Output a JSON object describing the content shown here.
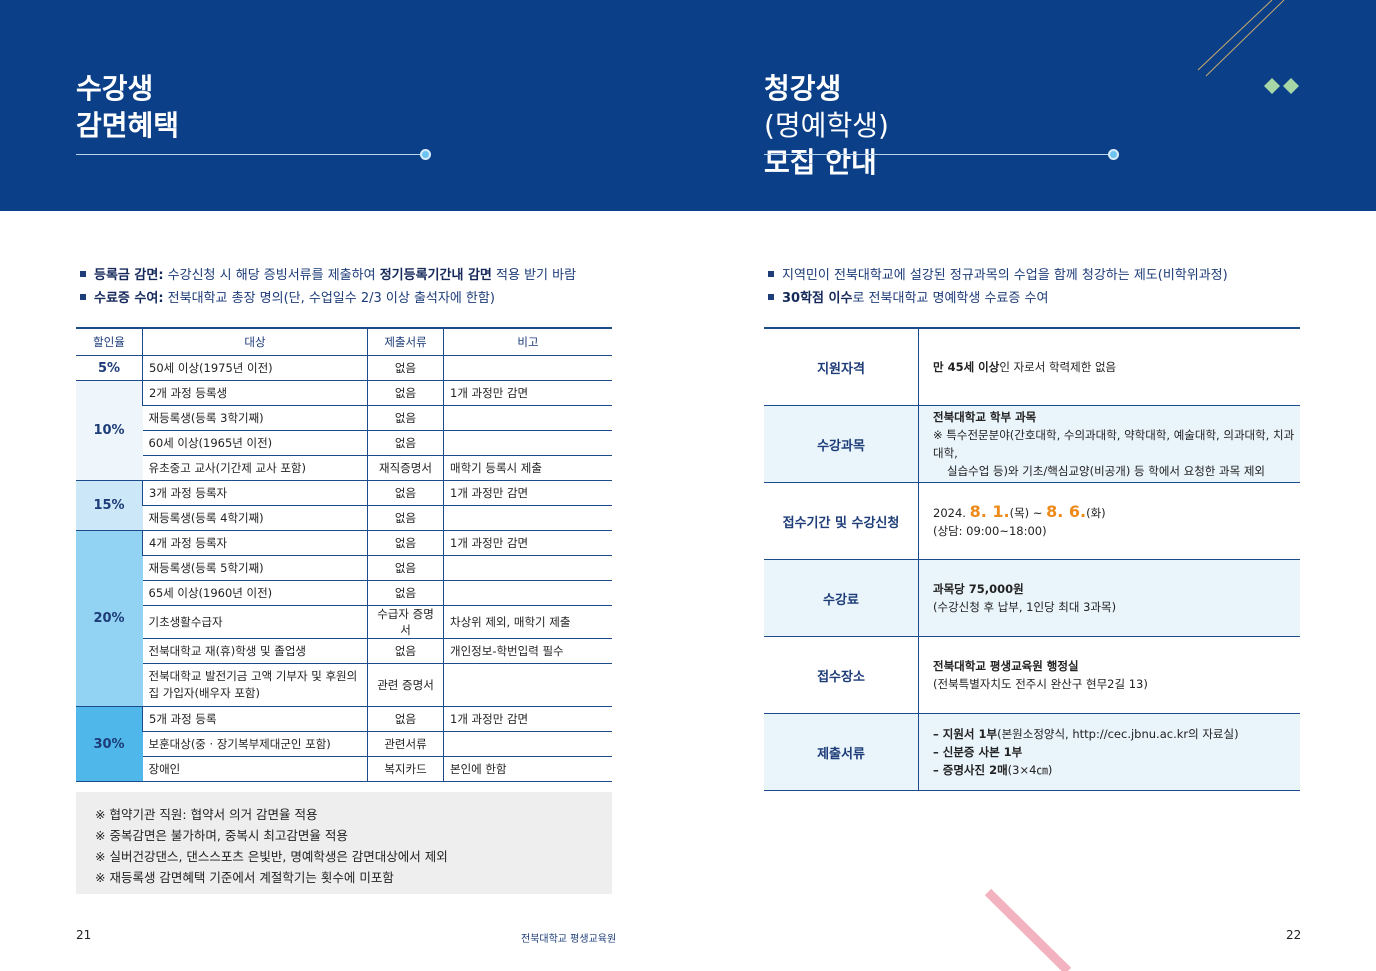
{
  "left": {
    "title": [
      "수강생",
      "감면혜택"
    ],
    "bullets": [
      [
        "등록금 감면:",
        "수강신청 시 해당 증빙서류를 제출하여",
        "정기등록기간내 감면",
        "적용 받기 바람"
      ],
      [
        "수료증 수여:",
        "전북대학교 총장 명의(단, 수업일수 2/3 이상 출석자에 한함)"
      ]
    ],
    "table": {
      "headers": [
        "할인율",
        "대상",
        "제출서류",
        "비고"
      ],
      "groups": [
        {
          "rate": "5%",
          "rows": [
            {
              "target": "50세 이상(1975년 이전)",
              "documents": "없음"
            }
          ]
        },
        {
          "rate": "10%",
          "rows": [
            {
              "target": "2개 과정 등록생",
              "documents": "없음",
              "note": "1개 과정만 감면"
            },
            {
              "target": "재등록생(등록 3학기째)",
              "documents": "없음"
            },
            {
              "target": "60세 이상(1965년 이전)",
              "documents": "없음"
            },
            {
              "target": "유초중고 교사(기간제 교사 포함)",
              "documents": "재직증명서",
              "note": "매학기 등록시 제출"
            }
          ]
        },
        {
          "rate": "15%",
          "rows": [
            {
              "target": "3개 과정 등록자",
              "documents": "없음",
              "note": "1개 과정만 감면"
            },
            {
              "target": "재등록생(등록 4학기째)",
              "documents": "없음"
            }
          ]
        },
        {
          "rate": "20%",
          "rows": [
            {
              "target": "4개 과정 등록자",
              "documents": "없음",
              "note": "1개 과정만 감면"
            },
            {
              "target": "재등록생(등록 5학기째)",
              "documents": "없음"
            },
            {
              "target": "65세 이상(1960년 이전)",
              "documents": "없음"
            },
            {
              "target": "기초생활수급자",
              "documents": "수급자 증명서",
              "note": "차상위 제외, 매학기 제출"
            },
            {
              "target": "전북대학교 재(휴)학생 및 졸업생",
              "documents": "없음",
              "note": "개인정보-학번입력 필수"
            },
            {
              "target": "전북대학교 발전기금 고액 기부자 및 후원의집 가입자(배우자 포함)",
              "documents": "관련 증명서"
            }
          ]
        },
        {
          "rate": "30%",
          "rows": [
            {
              "target": "5개 과정 등록",
              "documents": "없음",
              "note": "1개 과정만 감면"
            },
            {
              "target": "보훈대상(중 · 장기복부제대군인 포함)",
              "documents": "관련서류"
            },
            {
              "target": "장애인",
              "documents": "복지카드",
              "note": "본인에 한함"
            }
          ]
        }
      ]
    },
    "notes": [
      "※ 협약기관 직원: 협약서 의거 감면율 적용",
      "※ 중복감면은 불가하며, 중복시 최고감면율 적용",
      "※ 실버건강댄스, 댄스스포츠 은빛반, 명예학생은 감면대상에서 제외",
      "※ 재등록생 감면혜택 기준에서 계절학기는 횟수에 미포함"
    ]
  },
  "right": {
    "title": [
      "청강생",
      "(명예학생)",
      "모집 안내"
    ],
    "bullets": [
      [
        "지역민이 전북대학교에 설강된 정규과목의 수업을 함께 청강하는 제도(비학위과정)"
      ],
      [
        "30학점 이수",
        "로 전북대학교 명예학생 수료증 수여"
      ]
    ],
    "table": [
      {
        "label": "지원자격",
        "lines": [
          [
            "만 45세 이상",
            "인 자로서 학력제한 없음"
          ]
        ]
      },
      {
        "label": "수강과목",
        "lines": [
          [
            "전북대학교 학부 과목"
          ],
          [
            "※ 특수전문분야(간호대학, 수의과대학, 약학대학, 예술대학, 의과대학, 치과대학,"
          ],
          [
            "실습수업 등)와 기초/핵심교양(비공개) 등 학에서 요청한 과목 제외"
          ]
        ]
      },
      {
        "label": "접수기간 및 수강신청",
        "lines": [
          [
            "2024.",
            "8. 1.",
            "(목)",
            "~",
            "8. 6.",
            "(화)"
          ],
          [
            "(상담: 09:00~18:00)"
          ]
        ]
      },
      {
        "label": "수강료",
        "lines": [
          [
            "과목당 75,000원"
          ],
          [
            "(수강신청 후 납부, 1인당 최대 3과목)"
          ]
        ]
      },
      {
        "label": "접수장소",
        "lines": [
          [
            "전북대학교 평생교육원 행정실"
          ],
          [
            "(전북특별자치도 전주시 완산구 현무2길 13)"
          ]
        ]
      },
      {
        "label": "제출서류",
        "lines": [
          [
            "– 지원서 1부",
            "(본원소정양식, http://cec.jbnu.ac.kr의 자료실)"
          ],
          [
            "– 신분증 사본 1부"
          ],
          [
            "– 증명사진 2매",
            "(3×4㎝)"
          ]
        ]
      }
    ]
  },
  "footer": {
    "left_page": "21",
    "publisher": "전북대학교 평생교육원",
    "right_page": "22"
  }
}
